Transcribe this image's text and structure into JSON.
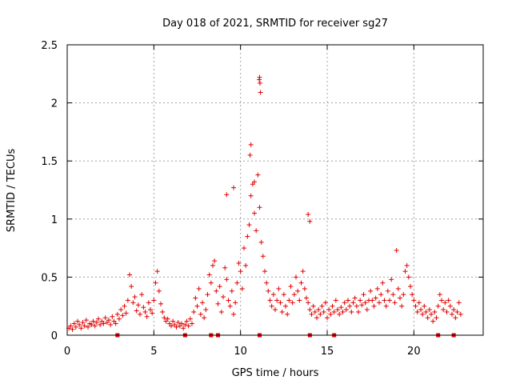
{
  "chart_data": {
    "type": "scatter",
    "title": "Day 018 of 2021, SRMTID for receiver sg27",
    "xlabel": "GPS time / hours",
    "ylabel": "SRMTID / TECUs",
    "xlim": [
      0,
      24
    ],
    "ylim": [
      0,
      2.5
    ],
    "xticks": [
      0,
      5,
      10,
      15,
      20
    ],
    "yticks": [
      0,
      0.5,
      1,
      1.5,
      2,
      2.5
    ],
    "xtick_labels": [
      "0",
      "5",
      "10",
      "15",
      "20"
    ],
    "ytick_labels": [
      "0",
      "0.5",
      "1",
      "1.5",
      "2",
      "2.5"
    ],
    "grid": true,
    "marker": "+",
    "color": "#e00000",
    "series": [
      {
        "name": "SRMTID",
        "points": [
          [
            0.1,
            0.06
          ],
          [
            0.2,
            0.08
          ],
          [
            0.3,
            0.05
          ],
          [
            0.4,
            0.1
          ],
          [
            0.5,
            0.07
          ],
          [
            0.6,
            0.12
          ],
          [
            0.7,
            0.09
          ],
          [
            0.8,
            0.06
          ],
          [
            0.9,
            0.11
          ],
          [
            1.0,
            0.08
          ],
          [
            1.1,
            0.13
          ],
          [
            1.2,
            0.07
          ],
          [
            1.3,
            0.1
          ],
          [
            1.4,
            0.09
          ],
          [
            1.5,
            0.12
          ],
          [
            1.6,
            0.08
          ],
          [
            1.7,
            0.11
          ],
          [
            1.8,
            0.14
          ],
          [
            1.9,
            0.09
          ],
          [
            2.0,
            0.12
          ],
          [
            2.1,
            0.1
          ],
          [
            2.2,
            0.15
          ],
          [
            2.3,
            0.11
          ],
          [
            2.4,
            0.13
          ],
          [
            2.5,
            0.09
          ],
          [
            2.6,
            0.16
          ],
          [
            2.7,
            0.12
          ],
          [
            2.8,
            0.1
          ],
          [
            2.9,
            0.18
          ],
          [
            3.0,
            0.14
          ],
          [
            3.1,
            0.22
          ],
          [
            3.2,
            0.17
          ],
          [
            3.3,
            0.25
          ],
          [
            3.4,
            0.19
          ],
          [
            3.5,
            0.3
          ],
          [
            3.6,
            0.52
          ],
          [
            3.7,
            0.42
          ],
          [
            3.8,
            0.28
          ],
          [
            3.9,
            0.33
          ],
          [
            4.0,
            0.21
          ],
          [
            4.1,
            0.26
          ],
          [
            4.2,
            0.18
          ],
          [
            4.3,
            0.35
          ],
          [
            4.4,
            0.24
          ],
          [
            4.5,
            0.2
          ],
          [
            4.6,
            0.16
          ],
          [
            4.7,
            0.28
          ],
          [
            4.8,
            0.22
          ],
          [
            4.9,
            0.19
          ],
          [
            5.0,
            0.3
          ],
          [
            5.1,
            0.45
          ],
          [
            5.2,
            0.55
          ],
          [
            5.3,
            0.38
          ],
          [
            5.4,
            0.27
          ],
          [
            5.5,
            0.2
          ],
          [
            5.6,
            0.15
          ],
          [
            5.7,
            0.12
          ],
          [
            5.8,
            0.14
          ],
          [
            5.9,
            0.1
          ],
          [
            6.0,
            0.08
          ],
          [
            6.1,
            0.12
          ],
          [
            6.2,
            0.09
          ],
          [
            6.3,
            0.07
          ],
          [
            6.4,
            0.11
          ],
          [
            6.5,
            0.08
          ],
          [
            6.6,
            0.1
          ],
          [
            6.7,
            0.06
          ],
          [
            6.8,
            0.09
          ],
          [
            6.9,
            0.12
          ],
          [
            7.0,
            0.08
          ],
          [
            7.1,
            0.14
          ],
          [
            7.2,
            0.1
          ],
          [
            7.3,
            0.2
          ],
          [
            7.4,
            0.32
          ],
          [
            7.5,
            0.25
          ],
          [
            7.6,
            0.4
          ],
          [
            7.7,
            0.18
          ],
          [
            7.8,
            0.28
          ],
          [
            7.9,
            0.15
          ],
          [
            8.0,
            0.22
          ],
          [
            8.1,
            0.35
          ],
          [
            8.2,
            0.52
          ],
          [
            8.3,
            0.45
          ],
          [
            8.4,
            0.6
          ],
          [
            8.5,
            0.64
          ],
          [
            8.6,
            0.38
          ],
          [
            8.7,
            0.27
          ],
          [
            8.8,
            0.42
          ],
          [
            8.9,
            0.2
          ],
          [
            9.0,
            0.33
          ],
          [
            9.1,
            0.58
          ],
          [
            9.2,
            0.48
          ],
          [
            9.3,
            0.3
          ],
          [
            9.4,
            0.25
          ],
          [
            9.5,
            0.38
          ],
          [
            9.6,
            0.18
          ],
          [
            9.7,
            0.28
          ],
          [
            9.8,
            0.45
          ],
          [
            9.9,
            0.62
          ],
          [
            10.0,
            0.55
          ],
          [
            10.1,
            0.4
          ],
          [
            10.2,
            0.75
          ],
          [
            10.3,
            0.6
          ],
          [
            10.4,
            0.85
          ],
          [
            10.5,
            0.95
          ],
          [
            10.6,
            1.2
          ],
          [
            10.7,
            1.3
          ],
          [
            10.8,
            1.05
          ],
          [
            10.9,
            0.9
          ],
          [
            11.0,
            1.38
          ],
          [
            11.1,
            1.1
          ],
          [
            11.2,
            0.8
          ],
          [
            11.3,
            0.68
          ],
          [
            11.4,
            0.55
          ],
          [
            11.5,
            0.45
          ],
          [
            11.6,
            0.38
          ],
          [
            11.7,
            0.3
          ],
          [
            11.8,
            0.25
          ],
          [
            11.9,
            0.35
          ],
          [
            12.0,
            0.22
          ],
          [
            12.1,
            0.3
          ],
          [
            12.2,
            0.4
          ],
          [
            12.3,
            0.28
          ],
          [
            12.4,
            0.2
          ],
          [
            12.5,
            0.35
          ],
          [
            12.6,
            0.25
          ],
          [
            12.7,
            0.18
          ],
          [
            12.8,
            0.3
          ],
          [
            12.9,
            0.42
          ],
          [
            13.0,
            0.28
          ],
          [
            13.1,
            0.35
          ],
          [
            13.2,
            0.5
          ],
          [
            13.3,
            0.38
          ],
          [
            13.4,
            0.3
          ],
          [
            13.5,
            0.45
          ],
          [
            13.6,
            0.55
          ],
          [
            13.7,
            0.4
          ],
          [
            13.8,
            0.32
          ],
          [
            13.9,
            0.28
          ],
          [
            14.0,
            0.22
          ],
          [
            14.1,
            0.18
          ],
          [
            14.2,
            0.25
          ],
          [
            14.3,
            0.2
          ],
          [
            14.4,
            0.15
          ],
          [
            14.5,
            0.22
          ],
          [
            14.6,
            0.18
          ],
          [
            14.7,
            0.25
          ],
          [
            14.8,
            0.2
          ],
          [
            14.9,
            0.28
          ],
          [
            15.0,
            0.15
          ],
          [
            15.1,
            0.22
          ],
          [
            15.2,
            0.18
          ],
          [
            15.3,
            0.25
          ],
          [
            15.4,
            0.2
          ],
          [
            15.5,
            0.3
          ],
          [
            15.6,
            0.22
          ],
          [
            15.7,
            0.18
          ],
          [
            15.8,
            0.24
          ],
          [
            15.9,
            0.2
          ],
          [
            16.0,
            0.28
          ],
          [
            16.1,
            0.22
          ],
          [
            16.2,
            0.3
          ],
          [
            16.3,
            0.25
          ],
          [
            16.4,
            0.2
          ],
          [
            16.5,
            0.28
          ],
          [
            16.6,
            0.32
          ],
          [
            16.7,
            0.25
          ],
          [
            16.8,
            0.2
          ],
          [
            16.9,
            0.3
          ],
          [
            17.0,
            0.26
          ],
          [
            17.1,
            0.35
          ],
          [
            17.2,
            0.28
          ],
          [
            17.3,
            0.22
          ],
          [
            17.4,
            0.3
          ],
          [
            17.5,
            0.38
          ],
          [
            17.6,
            0.3
          ],
          [
            17.7,
            0.25
          ],
          [
            17.8,
            0.32
          ],
          [
            17.9,
            0.4
          ],
          [
            18.0,
            0.28
          ],
          [
            18.1,
            0.35
          ],
          [
            18.2,
            0.45
          ],
          [
            18.3,
            0.3
          ],
          [
            18.4,
            0.25
          ],
          [
            18.5,
            0.38
          ],
          [
            18.6,
            0.3
          ],
          [
            18.7,
            0.48
          ],
          [
            18.8,
            0.35
          ],
          [
            18.9,
            0.28
          ],
          [
            19.0,
            0.73
          ],
          [
            19.1,
            0.4
          ],
          [
            19.2,
            0.32
          ],
          [
            19.3,
            0.25
          ],
          [
            19.4,
            0.35
          ],
          [
            19.5,
            0.55
          ],
          [
            19.6,
            0.6
          ],
          [
            19.7,
            0.5
          ],
          [
            19.8,
            0.42
          ],
          [
            19.9,
            0.35
          ],
          [
            20.0,
            0.3
          ],
          [
            20.1,
            0.25
          ],
          [
            20.2,
            0.2
          ],
          [
            20.3,
            0.28
          ],
          [
            20.4,
            0.22
          ],
          [
            20.5,
            0.18
          ],
          [
            20.6,
            0.25
          ],
          [
            20.7,
            0.2
          ],
          [
            20.8,
            0.15
          ],
          [
            20.9,
            0.22
          ],
          [
            21.0,
            0.18
          ],
          [
            21.1,
            0.12
          ],
          [
            21.2,
            0.2
          ],
          [
            21.3,
            0.15
          ],
          [
            21.4,
            0.25
          ],
          [
            21.5,
            0.35
          ],
          [
            21.6,
            0.3
          ],
          [
            21.7,
            0.22
          ],
          [
            21.8,
            0.28
          ],
          [
            21.9,
            0.2
          ],
          [
            22.0,
            0.3
          ],
          [
            22.1,
            0.25
          ],
          [
            22.2,
            0.18
          ],
          [
            22.3,
            0.22
          ],
          [
            22.4,
            0.15
          ],
          [
            22.5,
            0.2
          ],
          [
            22.6,
            0.28
          ],
          [
            22.7,
            0.18
          ],
          [
            10.6,
            1.64
          ],
          [
            10.55,
            1.55
          ],
          [
            9.6,
            1.27
          ],
          [
            9.2,
            1.21
          ],
          [
            10.8,
            1.32
          ],
          [
            13.9,
            1.04
          ],
          [
            14.0,
            0.98
          ],
          [
            11.1,
            2.22
          ],
          [
            11.08,
            2.2
          ],
          [
            11.12,
            2.17
          ],
          [
            11.15,
            2.09
          ]
        ]
      }
    ],
    "gap_marks_x": [
      2.9,
      6.8,
      8.3,
      8.7,
      11.1,
      14.0,
      15.4,
      21.4,
      22.3
    ]
  }
}
